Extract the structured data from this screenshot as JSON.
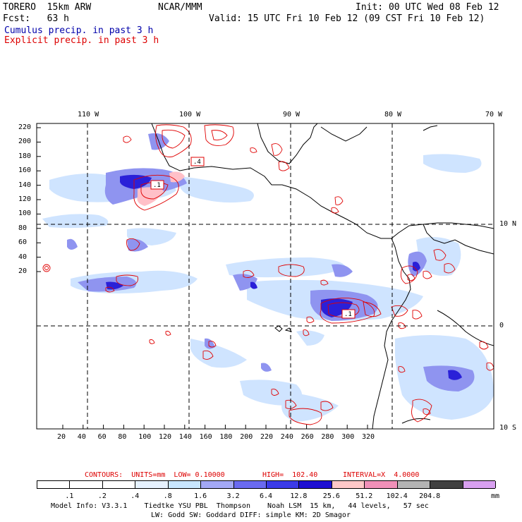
{
  "header": {
    "model": "TORERO  15km ARW",
    "center": "NCAR/MMM",
    "init": "Init: 00 UTC Wed 08 Feb 12",
    "fcst": "Fcst:   63 h",
    "valid": "Valid: 15 UTC Fri 10 Feb 12 (09 CST Fri 10 Feb 12)",
    "cumulus": "Cumulus precip. in past 3 h",
    "explicit": "Explicit precip. in past 3 h"
  },
  "colors": {
    "cumulus_text": "#0000aa",
    "explicit_text": "#dd0000",
    "contour": "#e00000"
  },
  "axes": {
    "top_lon": [
      "110 W",
      "100 W",
      "90 W",
      "80 W",
      "70 W"
    ],
    "right_lat": [
      "10 N",
      "0",
      "10 S"
    ],
    "left_y": [
      "220",
      "200",
      "180",
      "160",
      "140",
      "120",
      "100",
      "80",
      "60",
      "40",
      "20"
    ],
    "bottom_x": [
      "20",
      "40",
      "60",
      "80",
      "100",
      "120",
      "140",
      "160",
      "180",
      "200",
      "220",
      "240",
      "260",
      "280",
      "300",
      "320"
    ]
  },
  "map_labels": [
    ".4",
    ".1",
    ".1"
  ],
  "contours_line": {
    "label": "CONTOURS:  UNITS=mm  LOW= 0.10000",
    "high": "HIGH=  102.40",
    "interval": "INTERVAL=X  4.0000"
  },
  "colorbar": {
    "labels": [
      ".1",
      ".2",
      ".4",
      ".8",
      "1.6",
      "3.2",
      "6.4",
      "12.8",
      "25.6",
      "51.2",
      "102.4",
      "204.8"
    ],
    "colors": [
      "#ffffff",
      "#ffffff",
      "#ffffff",
      "#e6f2ff",
      "#c8e6ff",
      "#a3a8f5",
      "#6a6af0",
      "#3b3be8",
      "#1e10d2",
      "#ffc8c8",
      "#f090b8",
      "#b4b4b4",
      "#404040",
      "#d8a0f0"
    ],
    "unit": "mm"
  },
  "footer": {
    "line1": "Model Info: V3.3.1    Tiedtke YSU PBL  Thompson    Noah LSM  15 km,   44 levels,   57 sec",
    "line2": "LW: Godd SW: Goddard DIFF: simple KM: 2D Smagor"
  }
}
